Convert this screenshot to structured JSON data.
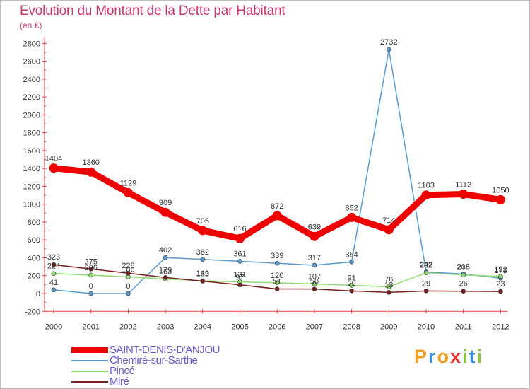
{
  "title": "Evolution du Montant de la Dette par Habitant",
  "subtitle": "(en €)",
  "logo": {
    "text": "Proxiti",
    "colors": [
      "#f0a020",
      "#3a8fd8",
      "#f0a020",
      "#e8302a",
      "#8ac640",
      "#3a8fd8",
      "#8ac640"
    ]
  },
  "chart_data": {
    "type": "line",
    "title": "Evolution du Montant de la Dette par Habitant",
    "ylabel": "(en €)",
    "ylim": [
      -200,
      2800
    ],
    "yticks": [
      -200,
      0,
      200,
      400,
      600,
      800,
      1000,
      1200,
      1400,
      1600,
      1800,
      2000,
      2200,
      2400,
      2600,
      2800
    ],
    "x": [
      "2000",
      "2001",
      "2002",
      "2003",
      "2004",
      "2005",
      "2006",
      "2007",
      "2008",
      "2009",
      "2010",
      "2011",
      "2012"
    ],
    "grid": false,
    "legend": "bottom-left",
    "series": [
      {
        "name": "SAINT-DENIS-D'ANJOU",
        "color": "#ee0000",
        "width": 9,
        "values": [
          1404,
          1360,
          1129,
          909,
          705,
          616,
          872,
          639,
          852,
          714,
          1103,
          1112,
          1050
        ]
      },
      {
        "name": "Chemiré-sur-Sarthe",
        "color": "#5a9bd0",
        "width": 1.5,
        "values": [
          41,
          0,
          0,
          402,
          382,
          361,
          339,
          317,
          354,
          2732,
          242,
          218,
          173
        ]
      },
      {
        "name": "Pincé",
        "color": "#90dc70",
        "width": 1.5,
        "values": [
          224,
          206,
          186,
          163,
          142,
          131,
          120,
          107,
          91,
          76,
          232,
          208,
          192
        ]
      },
      {
        "name": "Miré",
        "color": "#7a1f1f",
        "width": 1.5,
        "values": [
          323,
          275,
          228,
          179,
          139,
          97,
          51,
          50,
          29,
          13,
          29,
          26,
          23
        ]
      }
    ]
  }
}
